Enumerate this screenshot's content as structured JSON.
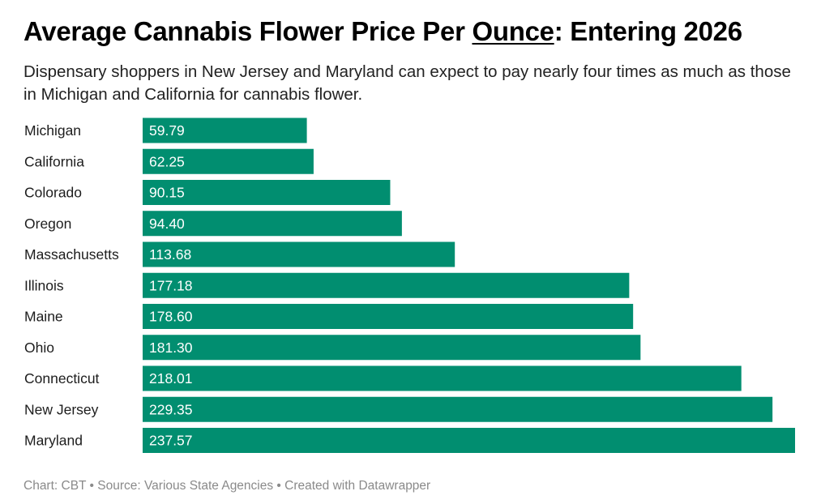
{
  "title": {
    "before": "Average Cannabis Flower Price Per ",
    "underlined": "Ounce",
    "after": ": Entering 2026"
  },
  "subtitle": "Dispensary shoppers in New Jersey and Maryland can expect to pay nearly four times as much as those in Michigan and California for cannabis flower.",
  "footer": "Chart: CBT • Source: Various State Agencies • Created with Datawrapper",
  "colors": {
    "bar": "#018e70",
    "bar_label": "#ffffff"
  },
  "chart_data": {
    "type": "bar",
    "orientation": "horizontal",
    "categories": [
      "Michigan",
      "California",
      "Colorado",
      "Oregon",
      "Massachusetts",
      "Illinois",
      "Maine",
      "Ohio",
      "Connecticut",
      "New Jersey",
      "Maryland"
    ],
    "values": [
      59.79,
      62.25,
      90.15,
      94.4,
      113.68,
      177.18,
      178.6,
      181.3,
      218.01,
      229.35,
      237.57
    ],
    "value_labels": [
      "59.79",
      "62.25",
      "90.15",
      "94.40",
      "113.68",
      "177.18",
      "178.60",
      "181.30",
      "218.01",
      "229.35",
      "237.57"
    ],
    "xlim": [
      0,
      237.57
    ],
    "grid": false
  }
}
